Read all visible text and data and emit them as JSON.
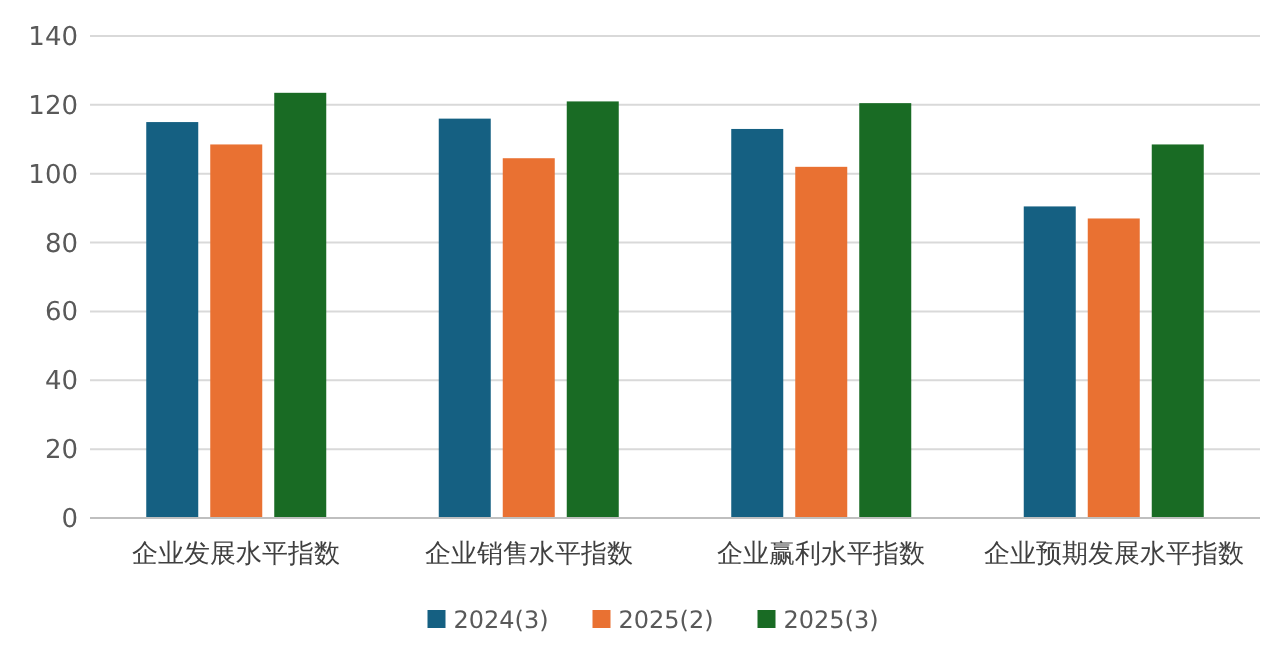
{
  "chart_data": {
    "type": "bar",
    "categories": [
      "企业发展水平指数",
      "企业销售水平指数",
      "企业赢利水平指数",
      "企业预期发展水平指数"
    ],
    "series": [
      {
        "name": "2024(3)",
        "color": "#156082",
        "values": [
          115,
          116,
          113,
          90.5
        ]
      },
      {
        "name": "2025(2)",
        "color": "#e97132",
        "values": [
          108.5,
          104.5,
          102,
          87
        ]
      },
      {
        "name": "2025(3)",
        "color": "#196b24",
        "values": [
          123.5,
          121,
          120.5,
          108.5
        ]
      }
    ],
    "ylim": [
      0,
      140
    ],
    "yticks": [
      0,
      20,
      40,
      60,
      80,
      100,
      120,
      140
    ],
    "grid": "y",
    "legend": "bottom"
  }
}
